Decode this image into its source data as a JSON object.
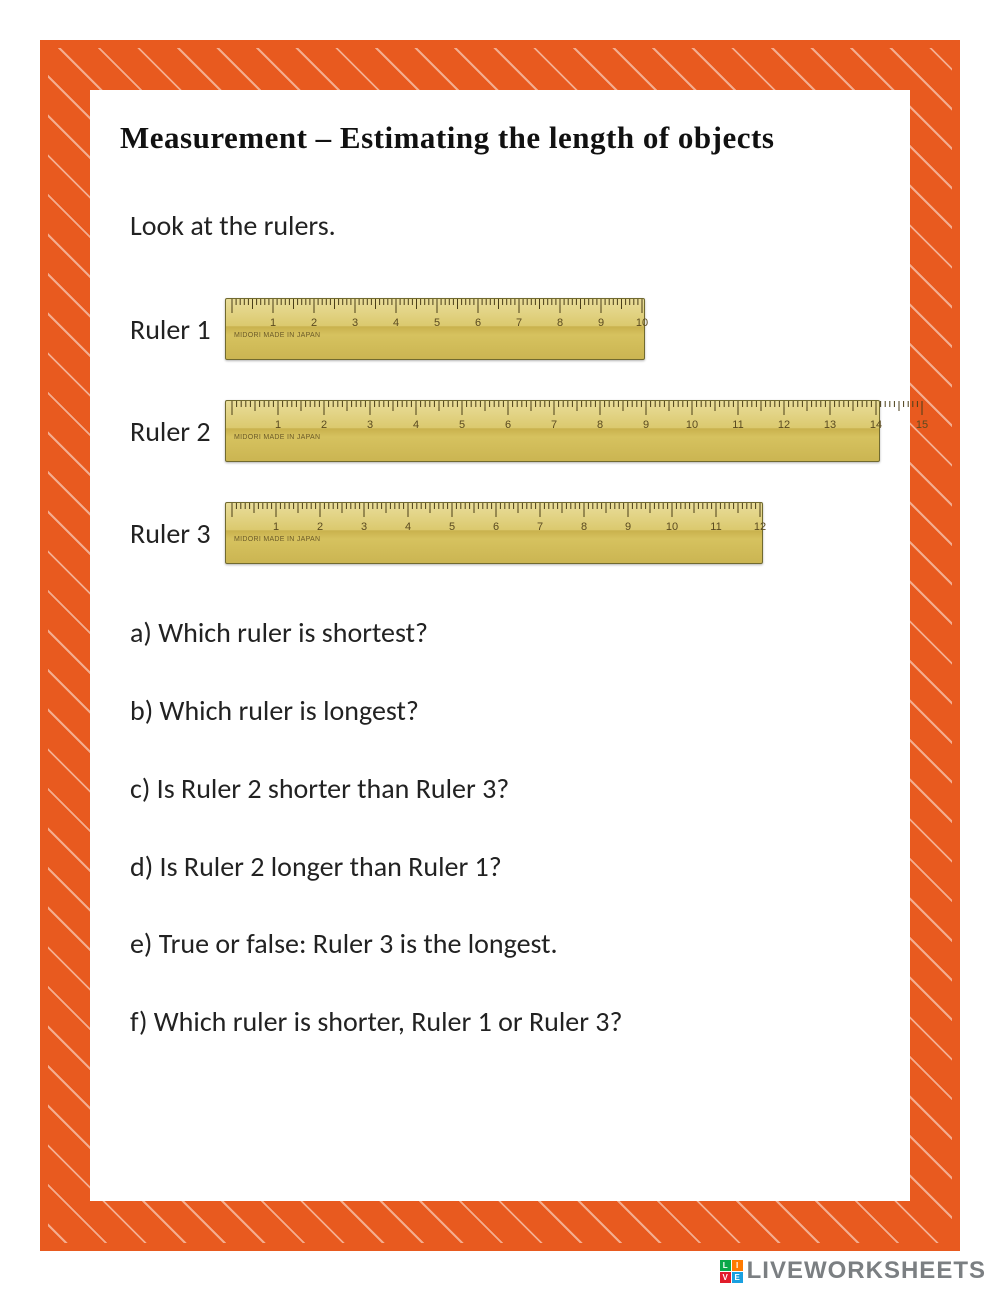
{
  "title": "Measurement – Estimating the length of objects",
  "intro": "Look at the rulers.",
  "rulers": [
    {
      "label": "Ruler 1",
      "max": 10,
      "pxPerUnit": 41,
      "made": "MIDORI MADE IN JAPAN"
    },
    {
      "label": "Ruler 2",
      "max": 15,
      "pxPerUnit": 46,
      "made": "MIDORI MADE IN JAPAN"
    },
    {
      "label": "Ruler 3",
      "max": 12,
      "pxPerUnit": 44,
      "made": "MIDORI MADE IN JAPAN"
    }
  ],
  "questions": [
    "a) Which ruler is shortest?",
    "b) Which ruler is longest?",
    "c) Is Ruler 2 shorter than Ruler 3?",
    "d) Is Ruler 2 longer than Ruler 1?",
    "e) True or false:    Ruler 3 is the longest.",
    "f) Which ruler is shorter, Ruler 1 or Ruler 3?"
  ],
  "colors": {
    "border": "#e85a1f",
    "text": "#222222",
    "rulerTop": "#e9dd9a",
    "rulerMid": "#dbc96e",
    "rulerBottom": "#cbb552",
    "tick": "#4a3e18"
  },
  "watermark": {
    "logo": [
      "L",
      "I",
      "V",
      "E"
    ],
    "text": "LIVEWORKSHEETS"
  }
}
